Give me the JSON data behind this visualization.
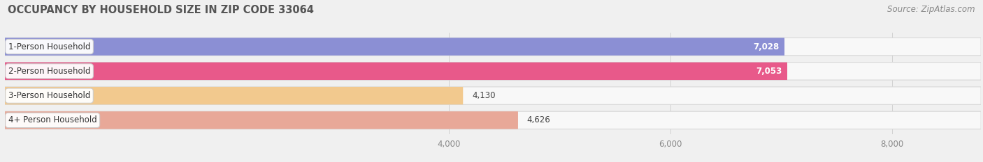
{
  "title": "OCCUPANCY BY HOUSEHOLD SIZE IN ZIP CODE 33064",
  "source": "Source: ZipAtlas.com",
  "categories": [
    "1-Person Household",
    "2-Person Household",
    "3-Person Household",
    "4+ Person Household"
  ],
  "values": [
    7028,
    7053,
    4130,
    4626
  ],
  "bar_colors": [
    "#8b8fd4",
    "#e8598a",
    "#f2c98e",
    "#e8a898"
  ],
  "label_colors": [
    "#ffffff",
    "#ffffff",
    "#555555",
    "#555555"
  ],
  "xlim_data": [
    0,
    8800
  ],
  "xticks": [
    4000,
    6000,
    8000
  ],
  "bg_color": "#f0f0f0",
  "bar_bg_color": "#ffffff",
  "row_bg_color": "#ececec",
  "title_fontsize": 10.5,
  "source_fontsize": 8.5,
  "tick_fontsize": 8.5,
  "bar_label_fontsize": 8.5,
  "category_fontsize": 8.5
}
